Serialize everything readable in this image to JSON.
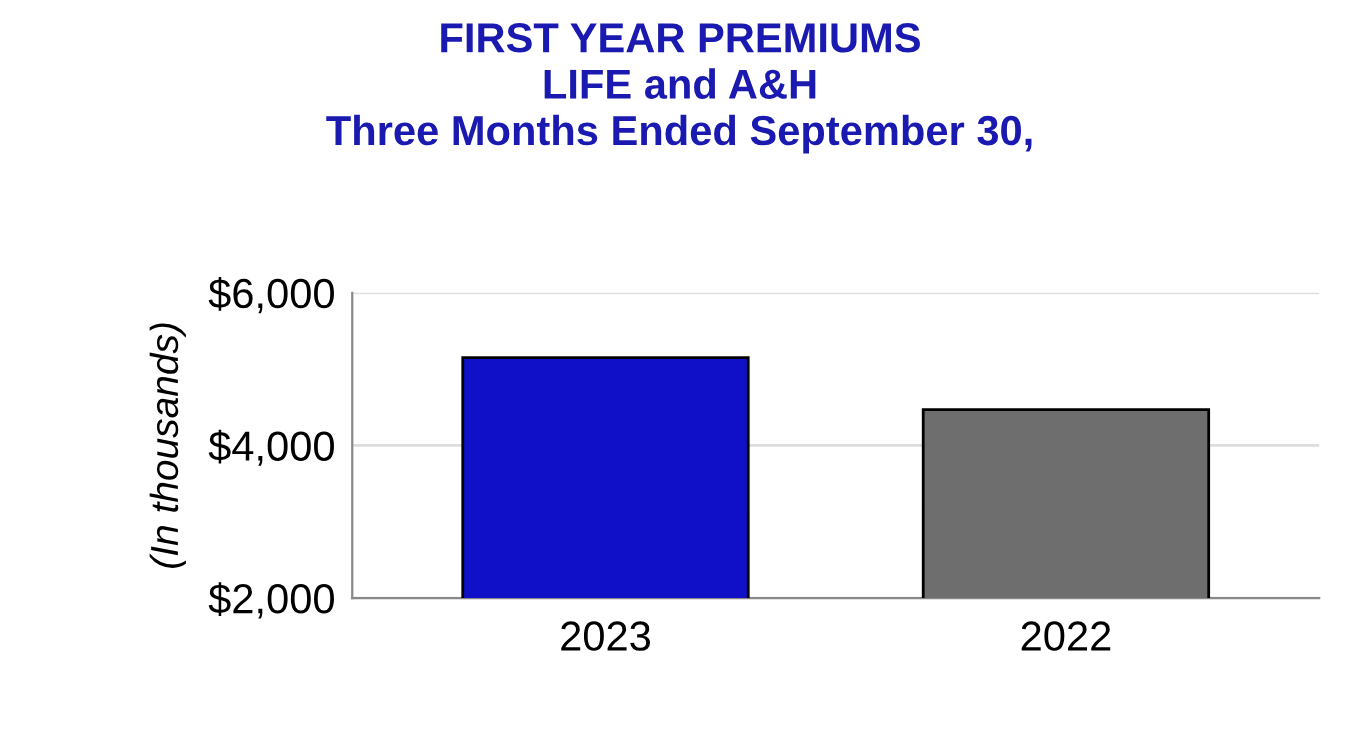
{
  "chart_data": {
    "type": "bar",
    "title": "FIRST YEAR PREMIUMS\nLIFE and A&H\nThree Months Ended September 30,",
    "ylabel": "(In thousands)",
    "categories": [
      "2023",
      "2022"
    ],
    "values": [
      5150,
      4470
    ],
    "colors": [
      "#1010c8",
      "#6e6e6e"
    ],
    "ylim": [
      2000,
      6000
    ],
    "yticks": [
      {
        "value": 2000,
        "label": "$2,000"
      },
      {
        "value": 4000,
        "label": "$4,000"
      },
      {
        "value": 6000,
        "label": "$6,000"
      }
    ],
    "grid": "y"
  }
}
